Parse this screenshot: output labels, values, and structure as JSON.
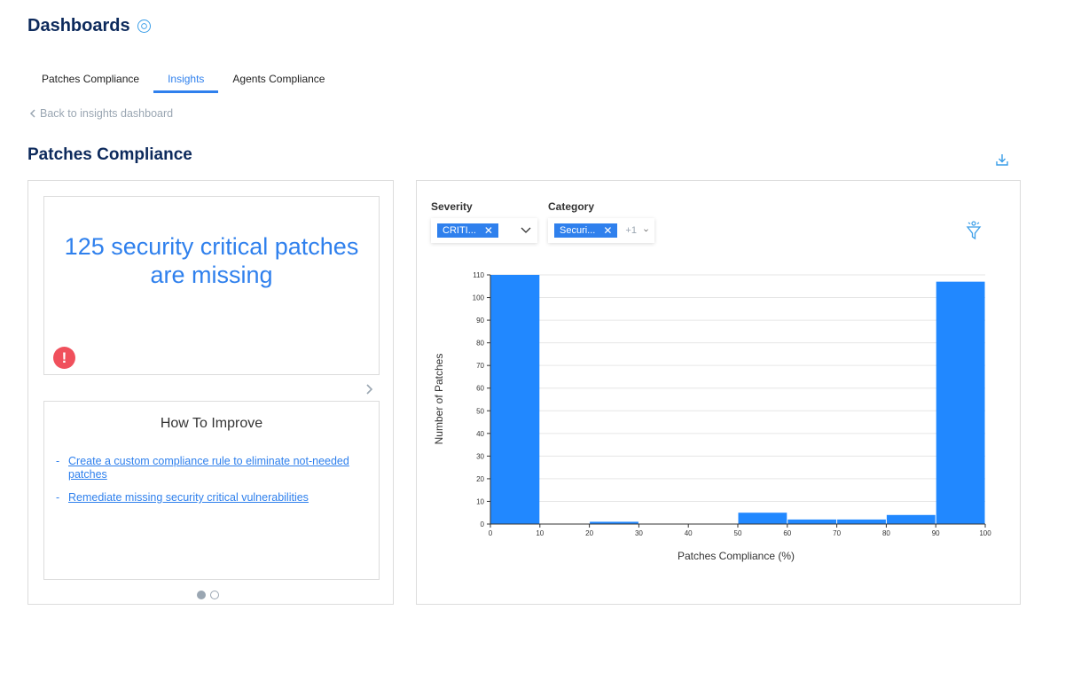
{
  "header": {
    "title": "Dashboards",
    "info_icon": "info-icon"
  },
  "tabs": [
    {
      "label": "Patches Compliance",
      "active": false
    },
    {
      "label": "Insights",
      "active": true
    },
    {
      "label": "Agents Compliance",
      "active": false
    }
  ],
  "back_link": {
    "label": "Back to insights dashboard"
  },
  "section": {
    "title": "Patches Compliance"
  },
  "insight": {
    "text": "125 security critical patches are missing",
    "icon": "exclamation-icon"
  },
  "improve": {
    "title": "How To Improve",
    "items": [
      "Create a custom compliance rule to eliminate not-needed patches",
      "Remediate missing security critical vulnerabilities"
    ]
  },
  "filters": {
    "severity": {
      "label": "Severity",
      "chip": "CRITI..."
    },
    "category": {
      "label": "Category",
      "chip": "Securi...",
      "more": "+1"
    }
  },
  "colors": {
    "accent": "#2f80ed",
    "title": "#0d2a5c",
    "bar": "#2188ff",
    "alert": "#f0505c"
  },
  "chart_data": {
    "type": "bar",
    "bins": [
      {
        "x0": 0,
        "x1": 10,
        "value": 110
      },
      {
        "x0": 10,
        "x1": 20,
        "value": 0
      },
      {
        "x0": 20,
        "x1": 30,
        "value": 1
      },
      {
        "x0": 30,
        "x1": 40,
        "value": 0
      },
      {
        "x0": 40,
        "x1": 50,
        "value": 0
      },
      {
        "x0": 50,
        "x1": 60,
        "value": 5
      },
      {
        "x0": 60,
        "x1": 70,
        "value": 2
      },
      {
        "x0": 70,
        "x1": 80,
        "value": 2
      },
      {
        "x0": 80,
        "x1": 90,
        "value": 4
      },
      {
        "x0": 90,
        "x1": 100,
        "value": 107
      }
    ],
    "xlabel": "Patches Compliance (%)",
    "ylabel": "Number of Patches",
    "xlim": [
      0,
      100
    ],
    "ylim": [
      0,
      110
    ],
    "xticks": [
      0,
      10,
      20,
      30,
      40,
      50,
      60,
      70,
      80,
      90,
      100
    ],
    "yticks": [
      0,
      10,
      20,
      30,
      40,
      50,
      60,
      70,
      80,
      90,
      100,
      110
    ],
    "grid": true
  }
}
